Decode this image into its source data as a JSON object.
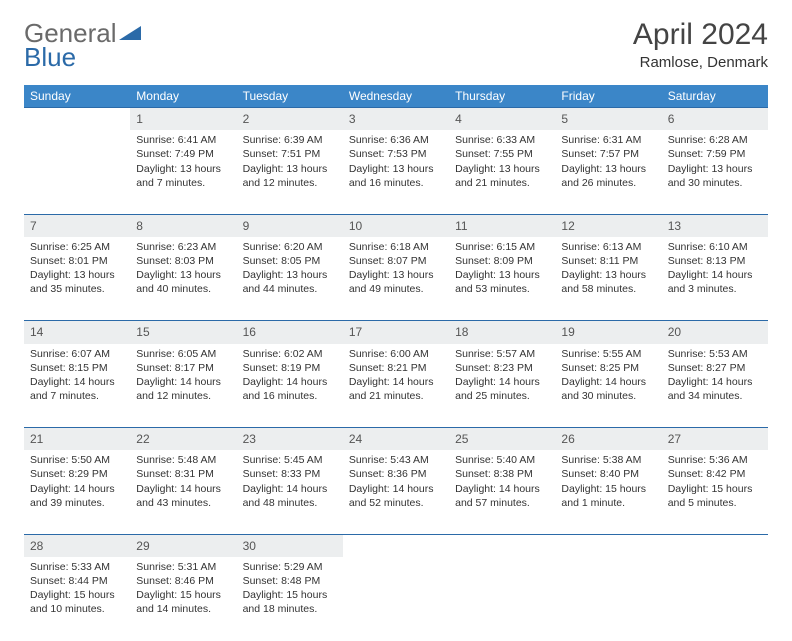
{
  "brand": {
    "word1": "General",
    "word2": "Blue",
    "triangle_color": "#2b6aa8"
  },
  "title": "April 2024",
  "location": "Ramlose, Denmark",
  "header_bg": "#3b86c8",
  "header_fg": "#ffffff",
  "daynum_bg": "#eceeef",
  "rule_color": "#2b6aa8",
  "text_color": "#333333",
  "day_names": [
    "Sunday",
    "Monday",
    "Tuesday",
    "Wednesday",
    "Thursday",
    "Friday",
    "Saturday"
  ],
  "weeks": [
    [
      null,
      {
        "n": "1",
        "sr": "6:41 AM",
        "ss": "7:49 PM",
        "dl": "13 hours and 7 minutes."
      },
      {
        "n": "2",
        "sr": "6:39 AM",
        "ss": "7:51 PM",
        "dl": "13 hours and 12 minutes."
      },
      {
        "n": "3",
        "sr": "6:36 AM",
        "ss": "7:53 PM",
        "dl": "13 hours and 16 minutes."
      },
      {
        "n": "4",
        "sr": "6:33 AM",
        "ss": "7:55 PM",
        "dl": "13 hours and 21 minutes."
      },
      {
        "n": "5",
        "sr": "6:31 AM",
        "ss": "7:57 PM",
        "dl": "13 hours and 26 minutes."
      },
      {
        "n": "6",
        "sr": "6:28 AM",
        "ss": "7:59 PM",
        "dl": "13 hours and 30 minutes."
      }
    ],
    [
      {
        "n": "7",
        "sr": "6:25 AM",
        "ss": "8:01 PM",
        "dl": "13 hours and 35 minutes."
      },
      {
        "n": "8",
        "sr": "6:23 AM",
        "ss": "8:03 PM",
        "dl": "13 hours and 40 minutes."
      },
      {
        "n": "9",
        "sr": "6:20 AM",
        "ss": "8:05 PM",
        "dl": "13 hours and 44 minutes."
      },
      {
        "n": "10",
        "sr": "6:18 AM",
        "ss": "8:07 PM",
        "dl": "13 hours and 49 minutes."
      },
      {
        "n": "11",
        "sr": "6:15 AM",
        "ss": "8:09 PM",
        "dl": "13 hours and 53 minutes."
      },
      {
        "n": "12",
        "sr": "6:13 AM",
        "ss": "8:11 PM",
        "dl": "13 hours and 58 minutes."
      },
      {
        "n": "13",
        "sr": "6:10 AM",
        "ss": "8:13 PM",
        "dl": "14 hours and 3 minutes."
      }
    ],
    [
      {
        "n": "14",
        "sr": "6:07 AM",
        "ss": "8:15 PM",
        "dl": "14 hours and 7 minutes."
      },
      {
        "n": "15",
        "sr": "6:05 AM",
        "ss": "8:17 PM",
        "dl": "14 hours and 12 minutes."
      },
      {
        "n": "16",
        "sr": "6:02 AM",
        "ss": "8:19 PM",
        "dl": "14 hours and 16 minutes."
      },
      {
        "n": "17",
        "sr": "6:00 AM",
        "ss": "8:21 PM",
        "dl": "14 hours and 21 minutes."
      },
      {
        "n": "18",
        "sr": "5:57 AM",
        "ss": "8:23 PM",
        "dl": "14 hours and 25 minutes."
      },
      {
        "n": "19",
        "sr": "5:55 AM",
        "ss": "8:25 PM",
        "dl": "14 hours and 30 minutes."
      },
      {
        "n": "20",
        "sr": "5:53 AM",
        "ss": "8:27 PM",
        "dl": "14 hours and 34 minutes."
      }
    ],
    [
      {
        "n": "21",
        "sr": "5:50 AM",
        "ss": "8:29 PM",
        "dl": "14 hours and 39 minutes."
      },
      {
        "n": "22",
        "sr": "5:48 AM",
        "ss": "8:31 PM",
        "dl": "14 hours and 43 minutes."
      },
      {
        "n": "23",
        "sr": "5:45 AM",
        "ss": "8:33 PM",
        "dl": "14 hours and 48 minutes."
      },
      {
        "n": "24",
        "sr": "5:43 AM",
        "ss": "8:36 PM",
        "dl": "14 hours and 52 minutes."
      },
      {
        "n": "25",
        "sr": "5:40 AM",
        "ss": "8:38 PM",
        "dl": "14 hours and 57 minutes."
      },
      {
        "n": "26",
        "sr": "5:38 AM",
        "ss": "8:40 PM",
        "dl": "15 hours and 1 minute."
      },
      {
        "n": "27",
        "sr": "5:36 AM",
        "ss": "8:42 PM",
        "dl": "15 hours and 5 minutes."
      }
    ],
    [
      {
        "n": "28",
        "sr": "5:33 AM",
        "ss": "8:44 PM",
        "dl": "15 hours and 10 minutes."
      },
      {
        "n": "29",
        "sr": "5:31 AM",
        "ss": "8:46 PM",
        "dl": "15 hours and 14 minutes."
      },
      {
        "n": "30",
        "sr": "5:29 AM",
        "ss": "8:48 PM",
        "dl": "15 hours and 18 minutes."
      },
      null,
      null,
      null,
      null
    ]
  ],
  "labels": {
    "sunrise": "Sunrise:",
    "sunset": "Sunset:",
    "daylight": "Daylight:"
  }
}
